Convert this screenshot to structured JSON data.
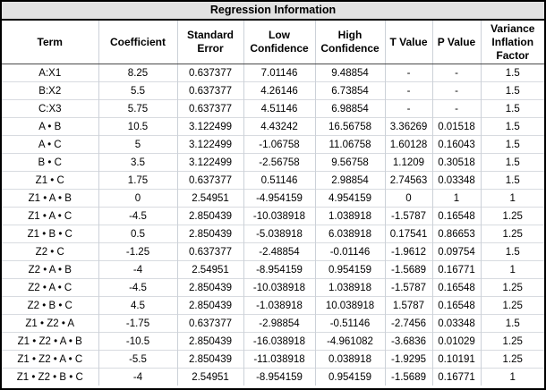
{
  "title": "Regression Information",
  "columns": [
    "Term",
    "Coefficient",
    "Standard Error",
    "Low Confidence",
    "High Confidence",
    "T Value",
    "P Value",
    "Variance Inflation Factor"
  ],
  "colors": {
    "highlight_red": "#ff0000",
    "title_bg": "#e2e2e2",
    "grid_line": "#ccd1d8",
    "row_line": "#d8dbe0",
    "header_border": "#4a4a4a",
    "outer_border": "#000000"
  },
  "rows": [
    {
      "term": "A:X1",
      "coefficient": "8.25",
      "standard_error": "0.637377",
      "low_confidence": "7.01146",
      "high_confidence": "9.48854",
      "t_value": "-",
      "p_value": "-",
      "vif": "1.5",
      "term_red": false,
      "p_red": false
    },
    {
      "term": "B:X2",
      "coefficient": "5.5",
      "standard_error": "0.637377",
      "low_confidence": "4.26146",
      "high_confidence": "6.73854",
      "t_value": "-",
      "p_value": "-",
      "vif": "1.5",
      "term_red": false,
      "p_red": false
    },
    {
      "term": "C:X3",
      "coefficient": "5.75",
      "standard_error": "0.637377",
      "low_confidence": "4.51146",
      "high_confidence": "6.98854",
      "t_value": "-",
      "p_value": "-",
      "vif": "1.5",
      "term_red": false,
      "p_red": false
    },
    {
      "term": "A • B",
      "coefficient": "10.5",
      "standard_error": "3.122499",
      "low_confidence": "4.43242",
      "high_confidence": "16.56758",
      "t_value": "3.36269",
      "p_value": "0.01518",
      "vif": "1.5",
      "term_red": true,
      "p_red": true
    },
    {
      "term": "A • C",
      "coefficient": "5",
      "standard_error": "3.122499",
      "low_confidence": "-1.06758",
      "high_confidence": "11.06758",
      "t_value": "1.60128",
      "p_value": "0.16043",
      "vif": "1.5",
      "term_red": false,
      "p_red": false
    },
    {
      "term": "B • C",
      "coefficient": "3.5",
      "standard_error": "3.122499",
      "low_confidence": "-2.56758",
      "high_confidence": "9.56758",
      "t_value": "1.1209",
      "p_value": "0.30518",
      "vif": "1.5",
      "term_red": false,
      "p_red": false
    },
    {
      "term": "Z1 • C",
      "coefficient": "1.75",
      "standard_error": "0.637377",
      "low_confidence": "0.51146",
      "high_confidence": "2.98854",
      "t_value": "2.74563",
      "p_value": "0.03348",
      "vif": "1.5",
      "term_red": true,
      "p_red": true
    },
    {
      "term": "Z1 • A • B",
      "coefficient": "0",
      "standard_error": "2.54951",
      "low_confidence": "-4.954159",
      "high_confidence": "4.954159",
      "t_value": "0",
      "p_value": "1",
      "vif": "1",
      "term_red": false,
      "p_red": false
    },
    {
      "term": "Z1 • A • C",
      "coefficient": "-4.5",
      "standard_error": "2.850439",
      "low_confidence": "-10.038918",
      "high_confidence": "1.038918",
      "t_value": "-1.5787",
      "p_value": "0.16548",
      "vif": "1.25",
      "term_red": false,
      "p_red": false
    },
    {
      "term": "Z1 • B • C",
      "coefficient": "0.5",
      "standard_error": "2.850439",
      "low_confidence": "-5.038918",
      "high_confidence": "6.038918",
      "t_value": "0.17541",
      "p_value": "0.86653",
      "vif": "1.25",
      "term_red": false,
      "p_red": false
    },
    {
      "term": "Z2 • C",
      "coefficient": "-1.25",
      "standard_error": "0.637377",
      "low_confidence": "-2.48854",
      "high_confidence": "-0.01146",
      "t_value": "-1.9612",
      "p_value": "0.09754",
      "vif": "1.5",
      "term_red": true,
      "p_red": true
    },
    {
      "term": "Z2 • A • B",
      "coefficient": "-4",
      "standard_error": "2.54951",
      "low_confidence": "-8.954159",
      "high_confidence": "0.954159",
      "t_value": "-1.5689",
      "p_value": "0.16771",
      "vif": "1",
      "term_red": false,
      "p_red": false
    },
    {
      "term": "Z2 • A • C",
      "coefficient": "-4.5",
      "standard_error": "2.850439",
      "low_confidence": "-10.038918",
      "high_confidence": "1.038918",
      "t_value": "-1.5787",
      "p_value": "0.16548",
      "vif": "1.25",
      "term_red": false,
      "p_red": false
    },
    {
      "term": "Z2 • B • C",
      "coefficient": "4.5",
      "standard_error": "2.850439",
      "low_confidence": "-1.038918",
      "high_confidence": "10.038918",
      "t_value": "1.5787",
      "p_value": "0.16548",
      "vif": "1.25",
      "term_red": false,
      "p_red": false
    },
    {
      "term": "Z1 • Z2 • A",
      "coefficient": "-1.75",
      "standard_error": "0.637377",
      "low_confidence": "-2.98854",
      "high_confidence": "-0.51146",
      "t_value": "-2.7456",
      "p_value": "0.03348",
      "vif": "1.5",
      "term_red": true,
      "p_red": true
    },
    {
      "term": "Z1 • Z2 • A • B",
      "coefficient": "-10.5",
      "standard_error": "2.850439",
      "low_confidence": "-16.038918",
      "high_confidence": "-4.961082",
      "t_value": "-3.6836",
      "p_value": "0.01029",
      "vif": "1.25",
      "term_red": true,
      "p_red": true
    },
    {
      "term": "Z1 • Z2 • A • C",
      "coefficient": "-5.5",
      "standard_error": "2.850439",
      "low_confidence": "-11.038918",
      "high_confidence": "0.038918",
      "t_value": "-1.9295",
      "p_value": "0.10191",
      "vif": "1.25",
      "term_red": false,
      "p_red": false
    },
    {
      "term": "Z1 • Z2 • B • C",
      "coefficient": "-4",
      "standard_error": "2.54951",
      "low_confidence": "-8.954159",
      "high_confidence": "0.954159",
      "t_value": "-1.5689",
      "p_value": "0.16771",
      "vif": "1",
      "term_red": false,
      "p_red": false
    }
  ]
}
